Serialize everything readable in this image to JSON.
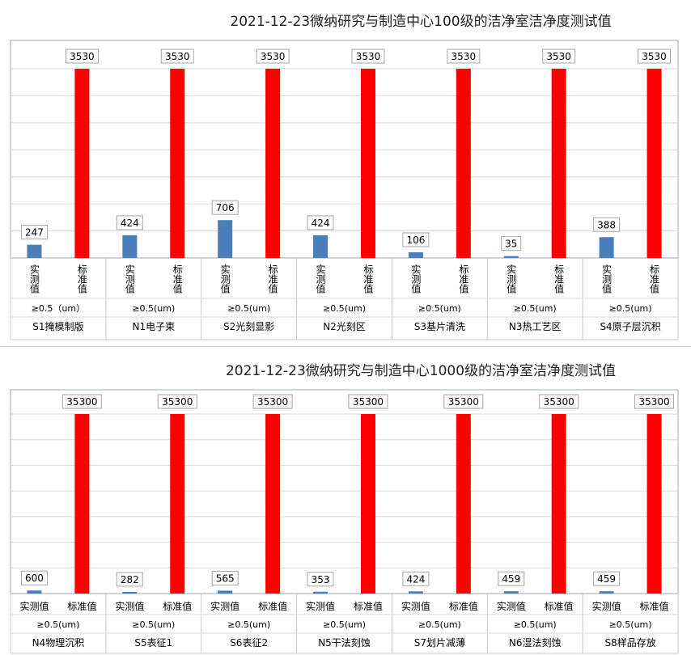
{
  "chart_data": [
    {
      "type": "bar",
      "title": "2021-12-23微纳研究与制造中心100级的洁净室洁净度测试值",
      "series_labels": [
        "实测值",
        "标准值"
      ],
      "colors": {
        "measured": "#4a7ebb",
        "standard": "#ff0000"
      },
      "ylim": [
        0,
        3530
      ],
      "vertical_series_labels": true,
      "groups": [
        {
          "name": "S1掩模制版",
          "size": "≥0.5（um）",
          "values": [
            247,
            3530
          ]
        },
        {
          "name": "N1电子束",
          "size": "≥0.5(um)",
          "values": [
            424,
            3530
          ]
        },
        {
          "name": "S2光刻显影",
          "size": "≥0.5(um)",
          "values": [
            706,
            3530
          ]
        },
        {
          "name": "N2光刻区",
          "size": "≥0.5(um)",
          "values": [
            424,
            3530
          ]
        },
        {
          "name": "S3基片清洗",
          "size": "≥0.5(um)",
          "values": [
            106,
            3530
          ]
        },
        {
          "name": "N3热工艺区",
          "size": "≥0.5(um)",
          "values": [
            35,
            3530
          ]
        },
        {
          "name": "S4原子层沉积",
          "size": "≥0.5(um)",
          "values": [
            388,
            3530
          ]
        }
      ]
    },
    {
      "type": "bar",
      "title": "2021-12-23微纳研究与制造中心1000级的洁净室洁净度测试值",
      "series_labels": [
        "实测值",
        "标准值"
      ],
      "colors": {
        "measured": "#4a7ebb",
        "standard": "#ff0000"
      },
      "ylim": [
        0,
        35300
      ],
      "vertical_series_labels": false,
      "groups": [
        {
          "name": "N4物理沉积",
          "size": "≥0.5(um)",
          "values": [
            600,
            35300
          ]
        },
        {
          "name": "S5表征1",
          "size": "≥0.5(um)",
          "values": [
            282,
            35300
          ]
        },
        {
          "name": "S6表征2",
          "size": "≥0.5(um)",
          "values": [
            565,
            35300
          ]
        },
        {
          "name": "N5干法刻蚀",
          "size": "≥0.5(um)",
          "values": [
            353,
            35300
          ]
        },
        {
          "name": "S7划片减薄",
          "size": "≥0.5(um)",
          "values": [
            424,
            35300
          ]
        },
        {
          "name": "N6湿法刻蚀",
          "size": "≥0.5(um)",
          "values": [
            459,
            35300
          ]
        },
        {
          "name": "S8样品存放",
          "size": "≥0.5(um)",
          "values": [
            459,
            35300
          ]
        }
      ]
    }
  ]
}
